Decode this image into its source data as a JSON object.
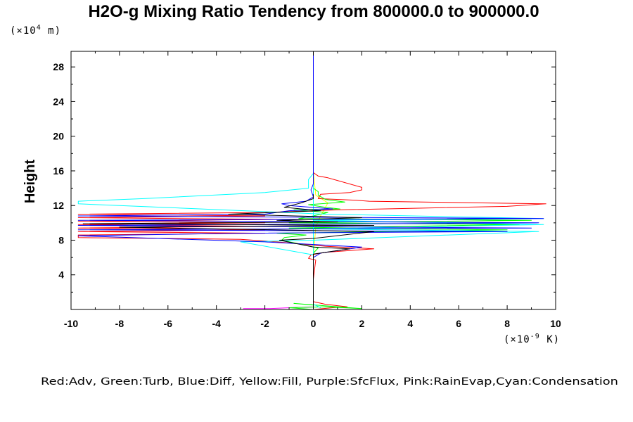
{
  "chart_data": {
    "type": "line",
    "title": "H2O-g Mixing Ratio Tendency from 800000.0 to 900000.0",
    "xunit": {
      "prefix": "(×10",
      "exp": "-9",
      "suffix": " K)"
    },
    "yunit": {
      "prefix": "(×10",
      "exp": "4",
      "suffix": " m)"
    },
    "ylabel": "Height",
    "xlim": [
      -10,
      10
    ],
    "ylim": [
      0,
      29.8
    ],
    "x_ticks": [
      -10,
      -8,
      -6,
      -4,
      -2,
      0,
      2,
      4,
      6,
      8,
      10
    ],
    "y_ticks": [
      4,
      8,
      12,
      16,
      20,
      24,
      28
    ],
    "grid": false,
    "legend": "Red:Adv, Green:Turb, Blue:Diff, Yellow:Fill, Purple:SfcFlux, Pink:RainEvap,Cyan:Condensation",
    "series": [
      {
        "color": "#ffff00",
        "points": [
          [
            0,
            0
          ],
          [
            0,
            6
          ],
          [
            0.1,
            9.5
          ],
          [
            0.3,
            10.8
          ],
          [
            0.6,
            12.3
          ],
          [
            0.1,
            13.2
          ],
          [
            0,
            16
          ],
          [
            0,
            29.8
          ]
        ]
      },
      {
        "color": "#ff00ff",
        "points": [
          [
            -2.9,
            0.1
          ],
          [
            -1.8,
            0.1
          ],
          [
            -1,
            0.2
          ],
          [
            0,
            0.3
          ],
          [
            0,
            29.8
          ]
        ]
      },
      {
        "color": "#ff99cc",
        "points": [
          [
            0,
            0
          ],
          [
            0,
            29.8
          ]
        ]
      },
      {
        "color": "#ff0000",
        "points": [
          [
            0,
            0
          ],
          [
            0.8,
            0.2
          ],
          [
            1.4,
            0.3
          ],
          [
            0.5,
            0.6
          ],
          [
            0,
            0.9
          ],
          [
            0,
            3.5
          ],
          [
            0.1,
            5.7
          ],
          [
            -0.2,
            5.9
          ],
          [
            -0.1,
            6.3
          ],
          [
            0.5,
            6.6
          ],
          [
            2.5,
            7
          ],
          [
            0.5,
            7.3
          ],
          [
            -1.5,
            7.8
          ],
          [
            -3,
            8.1
          ],
          [
            -9.7,
            8.3
          ],
          [
            -9.7,
            8.6
          ],
          [
            -2,
            8.8
          ],
          [
            -9.7,
            9
          ],
          [
            -2,
            9.2
          ],
          [
            -9.7,
            9.4
          ],
          [
            -2,
            9.6
          ],
          [
            -9.7,
            9.8
          ],
          [
            -2,
            10
          ],
          [
            -9.7,
            10.2
          ],
          [
            -1.5,
            10.4
          ],
          [
            -9.7,
            10.6
          ],
          [
            -2,
            10.8
          ],
          [
            -9.7,
            11
          ],
          [
            -2,
            11.2
          ],
          [
            1,
            11.5
          ],
          [
            8,
            11.9
          ],
          [
            9.6,
            12.2
          ],
          [
            2.3,
            12.5
          ],
          [
            1.8,
            12.6
          ],
          [
            0.2,
            12.8
          ],
          [
            0.3,
            13.3
          ],
          [
            1.5,
            13.5
          ],
          [
            2,
            13.8
          ],
          [
            2,
            14.1
          ],
          [
            0.6,
            15.2
          ],
          [
            0.2,
            15.4
          ],
          [
            0,
            15.8
          ],
          [
            0,
            29.8
          ]
        ]
      },
      {
        "color": "#00ff00",
        "points": [
          [
            0,
            0
          ],
          [
            -1,
            0.2
          ],
          [
            0.5,
            0.3
          ],
          [
            2,
            0.1
          ],
          [
            -0.8,
            0.7
          ],
          [
            0,
            0.5
          ],
          [
            0,
            6.5
          ],
          [
            0.2,
            7.1
          ],
          [
            -1.3,
            8
          ],
          [
            -1.2,
            8.3
          ],
          [
            -0.3,
            8.6
          ],
          [
            -1.5,
            8.8
          ],
          [
            8,
            9.2
          ],
          [
            -1,
            9.4
          ],
          [
            8.5,
            9.8
          ],
          [
            -1,
            10
          ],
          [
            9,
            10.3
          ],
          [
            -0.6,
            10.5
          ],
          [
            0,
            10.8
          ],
          [
            0.6,
            11.2
          ],
          [
            -0.8,
            11.5
          ],
          [
            1.1,
            11.6
          ],
          [
            0.5,
            11.8
          ],
          [
            -0.2,
            12.1
          ],
          [
            1.3,
            12.4
          ],
          [
            0.5,
            12.7
          ],
          [
            0.2,
            13.2
          ],
          [
            0.2,
            13.6
          ],
          [
            0,
            14
          ],
          [
            0,
            29.8
          ]
        ]
      },
      {
        "color": "#00ffff",
        "points": [
          [
            0,
            0
          ],
          [
            0,
            29.8
          ]
        ]
      },
      {
        "color": "#00ffff",
        "points": [
          [
            0.3,
            0.2
          ],
          [
            0,
            0.6
          ],
          [
            0,
            6.3
          ],
          [
            -3,
            7.8
          ],
          [
            0,
            8
          ],
          [
            9.3,
            9
          ],
          [
            0,
            9.3
          ],
          [
            9.5,
            9.8
          ],
          [
            0,
            10.3
          ],
          [
            9.5,
            10.5
          ],
          [
            0.5,
            11
          ],
          [
            -9.7,
            12.2
          ],
          [
            -9.7,
            12.5
          ],
          [
            -7,
            12.8
          ],
          [
            -2,
            13.5
          ],
          [
            -0.2,
            14
          ],
          [
            -0.2,
            15
          ],
          [
            0,
            15.7
          ],
          [
            0,
            29.8
          ]
        ]
      },
      {
        "color": "#0000ff",
        "points": [
          [
            0,
            0.3
          ],
          [
            0,
            0.7
          ],
          [
            0,
            6
          ],
          [
            0.3,
            6.5
          ],
          [
            2,
            7.2
          ],
          [
            -2,
            7.8
          ],
          [
            -9.7,
            8.5
          ],
          [
            -3,
            8.8
          ],
          [
            8,
            9
          ],
          [
            -9.7,
            9.2
          ],
          [
            9,
            9.4
          ],
          [
            -9.7,
            9.7
          ],
          [
            9.3,
            10
          ],
          [
            -9.7,
            10.3
          ],
          [
            9.5,
            10.5
          ],
          [
            -9.7,
            10.8
          ],
          [
            -2,
            11
          ],
          [
            -1,
            11.4
          ],
          [
            0.8,
            11.6
          ],
          [
            -1,
            12
          ],
          [
            -1.3,
            12.2
          ],
          [
            -0.3,
            12.5
          ],
          [
            0,
            13
          ],
          [
            -0.1,
            13.8
          ],
          [
            0,
            14.5
          ],
          [
            0,
            29.8
          ]
        ]
      },
      {
        "color": "#000000",
        "points": [
          [
            0,
            0.2
          ],
          [
            0,
            6.4
          ],
          [
            1.5,
            7
          ],
          [
            0,
            7.2
          ],
          [
            -1.4,
            8
          ],
          [
            0,
            8.2
          ],
          [
            2.5,
            9
          ],
          [
            -8,
            9.5
          ],
          [
            2.5,
            9.7
          ],
          [
            -9.5,
            9.9
          ],
          [
            1,
            10.1
          ],
          [
            -1.5,
            10.3
          ],
          [
            2,
            10.6
          ],
          [
            -3.5,
            11
          ],
          [
            0.3,
            11.4
          ],
          [
            -1.2,
            11.8
          ],
          [
            -0.5,
            12.3
          ],
          [
            0,
            12.8
          ],
          [
            0,
            13.3
          ]
        ]
      }
    ]
  }
}
